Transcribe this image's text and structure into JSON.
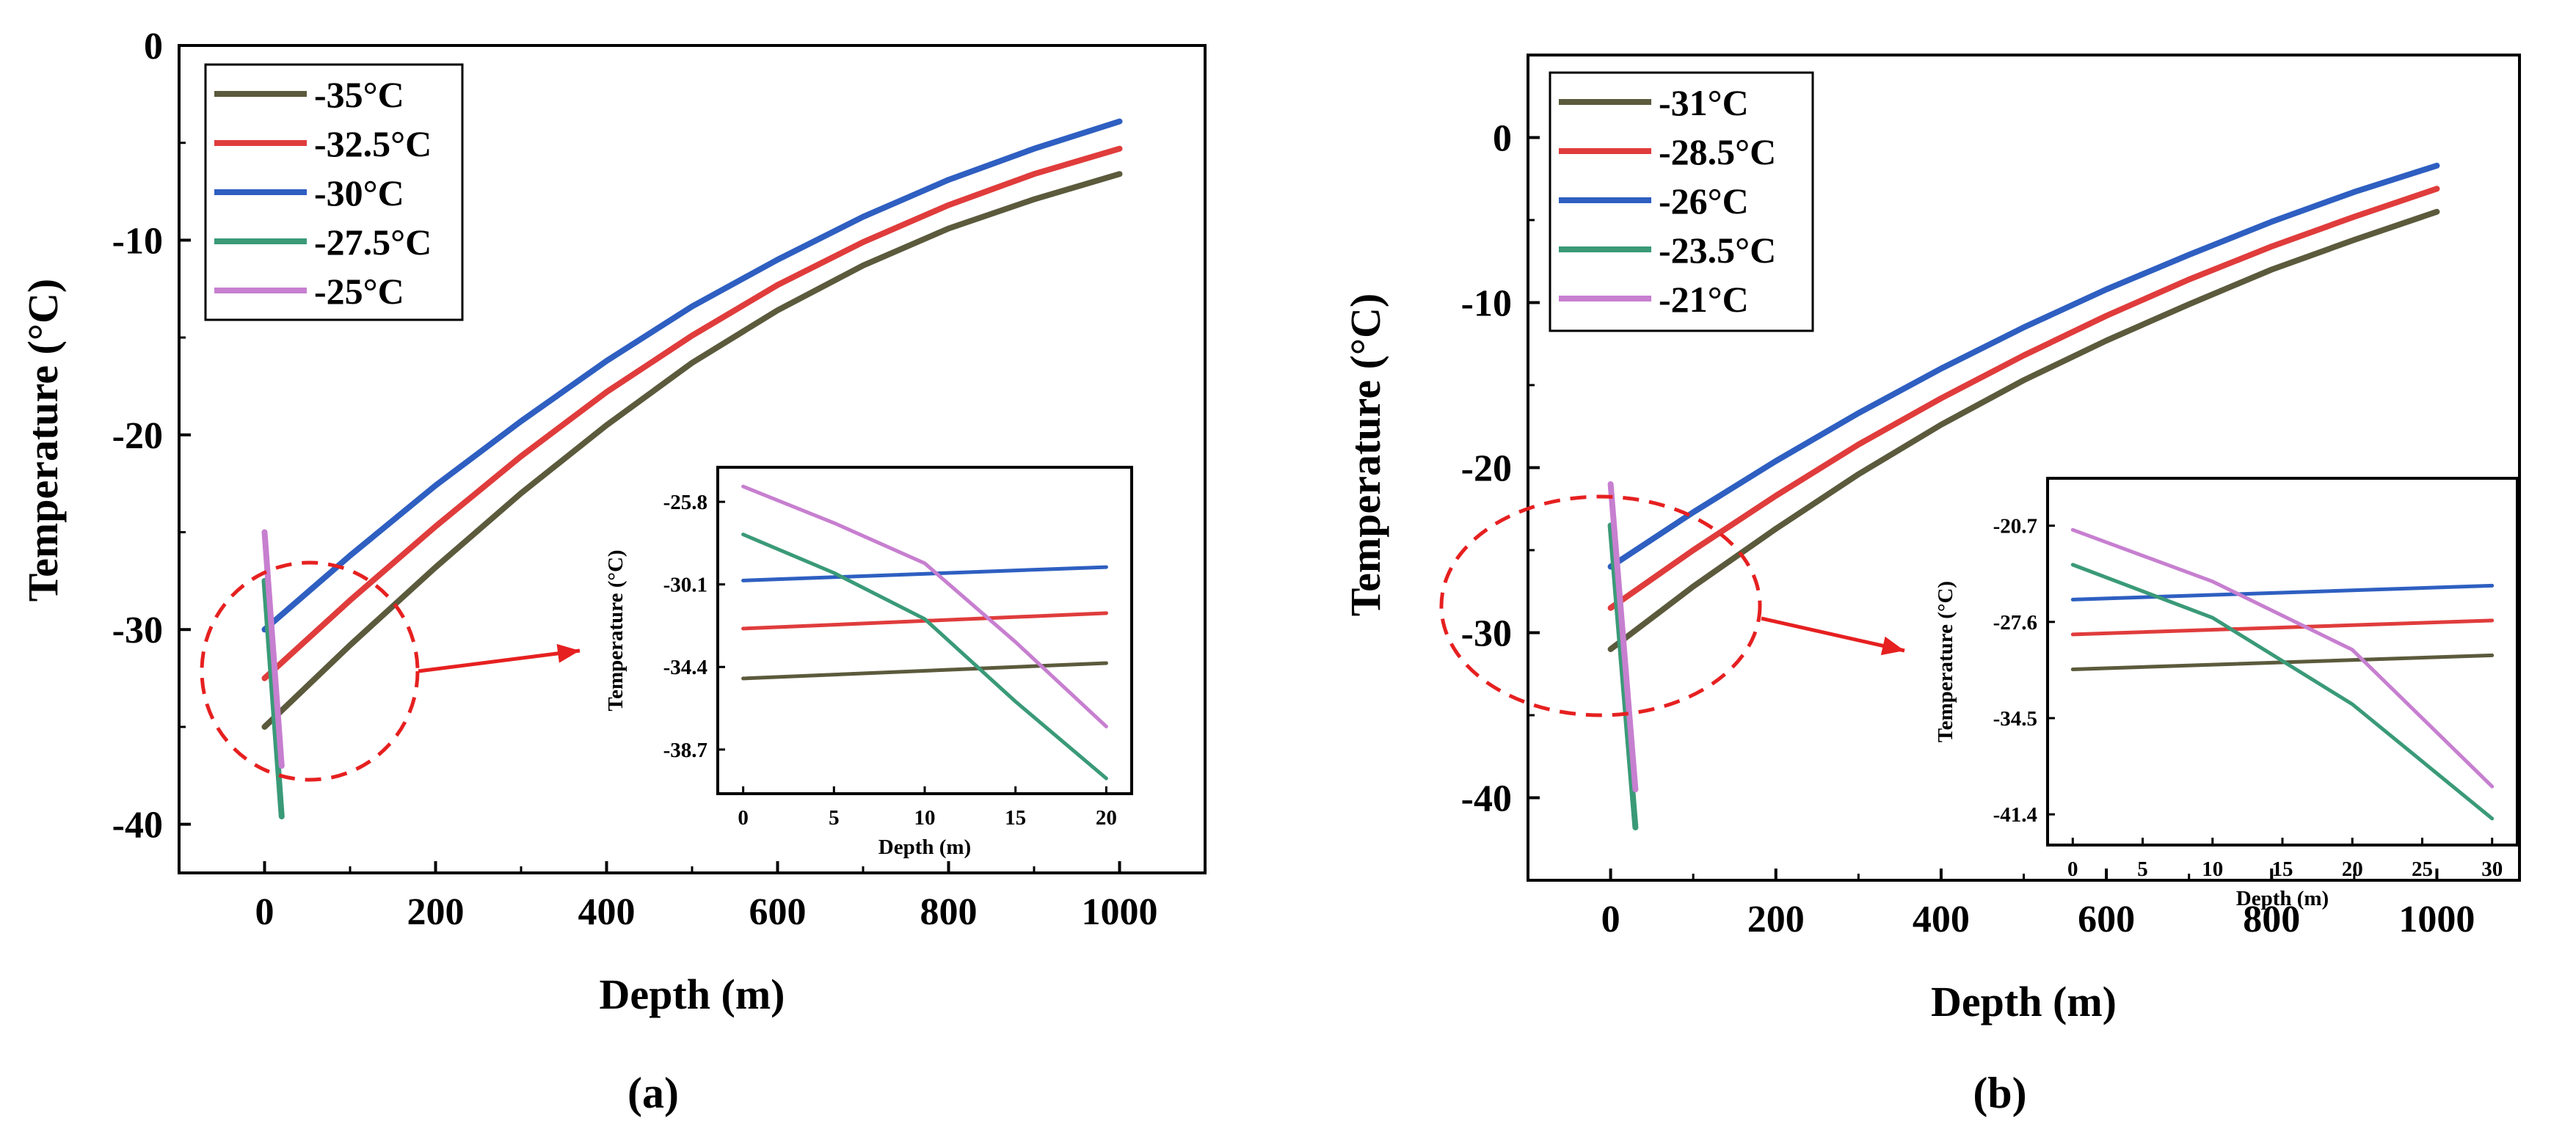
{
  "chart_data": [
    {
      "type": "line",
      "panel_label": "(a)",
      "xlabel": "Depth (m)",
      "ylabel": "Temperature (°C)",
      "xlim": [
        -100,
        1100
      ],
      "ylim": [
        -42.5,
        0
      ],
      "xticks": [
        0,
        200,
        400,
        600,
        800,
        1000
      ],
      "yticks": [
        0,
        -10,
        -20,
        -30,
        -40
      ],
      "legend_position": "top-left",
      "series": [
        {
          "name": "-35°C",
          "color": "#5b5a3c",
          "x": [
            0,
            100,
            200,
            300,
            400,
            500,
            600,
            700,
            800,
            900,
            1000
          ],
          "y": [
            -35.0,
            -30.8,
            -26.8,
            -23.0,
            -19.5,
            -16.3,
            -13.6,
            -11.3,
            -9.4,
            -7.9,
            -6.6
          ]
        },
        {
          "name": "-32.5°C",
          "color": "#e03c3c",
          "x": [
            0,
            100,
            200,
            300,
            400,
            500,
            600,
            700,
            800,
            900,
            1000
          ],
          "y": [
            -32.5,
            -28.5,
            -24.7,
            -21.1,
            -17.8,
            -14.9,
            -12.3,
            -10.1,
            -8.2,
            -6.6,
            -5.3
          ]
        },
        {
          "name": "-30°C",
          "color": "#2e5fc1",
          "x": [
            0,
            100,
            200,
            300,
            400,
            500,
            600,
            700,
            800,
            900,
            1000
          ],
          "y": [
            -30.0,
            -26.2,
            -22.6,
            -19.3,
            -16.2,
            -13.4,
            -11.0,
            -8.8,
            -6.9,
            -5.3,
            -3.9
          ]
        },
        {
          "name": "-27.5°C",
          "color": "#3a9a78",
          "x": [
            0,
            20
          ],
          "y": [
            -27.5,
            -39.6
          ]
        },
        {
          "name": "-25°C",
          "color": "#c77fd0",
          "x": [
            0,
            20
          ],
          "y": [
            -25.0,
            -37.0
          ]
        }
      ],
      "inset": {
        "xlabel": "Depth (m)",
        "ylabel": "Temperature (°C)",
        "xlim": [
          -1.4,
          21.4
        ],
        "ylim": [
          -41.0,
          -24.0
        ],
        "xticks": [
          0,
          5,
          10,
          15,
          20
        ],
        "yticks": [
          -25.8,
          -30.1,
          -34.4,
          -38.7
        ],
        "series": [
          {
            "name": "-35°C",
            "color": "#5b5a3c",
            "x": [
              0,
              20
            ],
            "y": [
              -35.0,
              -34.2
            ]
          },
          {
            "name": "-32.5°C",
            "color": "#e03c3c",
            "x": [
              0,
              20
            ],
            "y": [
              -32.4,
              -31.6
            ]
          },
          {
            "name": "-30°C",
            "color": "#2e5fc1",
            "x": [
              0,
              20
            ],
            "y": [
              -29.9,
              -29.2
            ]
          },
          {
            "name": "-27.5°C",
            "color": "#3a9a78",
            "x": [
              0,
              5,
              10,
              15,
              20
            ],
            "y": [
              -27.5,
              -29.5,
              -31.9,
              -36.2,
              -40.2
            ]
          },
          {
            "name": "-25°C",
            "color": "#c77fd0",
            "x": [
              0,
              5,
              10,
              15,
              20
            ],
            "y": [
              -25.0,
              -26.9,
              -29.0,
              -33.1,
              -37.5
            ]
          }
        ]
      }
    },
    {
      "type": "line",
      "panel_label": "(b)",
      "xlabel": "Depth (m)",
      "ylabel": "Temperature (°C)",
      "xlim": [
        -100,
        1100
      ],
      "ylim": [
        -45,
        5
      ],
      "xticks": [
        0,
        200,
        400,
        600,
        800,
        1000
      ],
      "yticks": [
        0,
        -10,
        -20,
        -30,
        -40
      ],
      "legend_position": "top-left",
      "series": [
        {
          "name": "-31°C",
          "color": "#5b5a3c",
          "x": [
            0,
            100,
            200,
            300,
            400,
            500,
            600,
            700,
            800,
            900,
            1000
          ],
          "y": [
            -31.0,
            -27.2,
            -23.7,
            -20.4,
            -17.4,
            -14.7,
            -12.3,
            -10.1,
            -8.0,
            -6.2,
            -4.5
          ]
        },
        {
          "name": "-28.5°C",
          "color": "#e03c3c",
          "x": [
            0,
            100,
            200,
            300,
            400,
            500,
            600,
            700,
            800,
            900,
            1000
          ],
          "y": [
            -28.5,
            -25.0,
            -21.7,
            -18.6,
            -15.8,
            -13.2,
            -10.8,
            -8.6,
            -6.6,
            -4.8,
            -3.1
          ]
        },
        {
          "name": "-26°C",
          "color": "#2e5fc1",
          "x": [
            0,
            100,
            200,
            300,
            400,
            500,
            600,
            700,
            800,
            900,
            1000
          ],
          "y": [
            -26.0,
            -22.7,
            -19.6,
            -16.7,
            -14.0,
            -11.5,
            -9.2,
            -7.1,
            -5.1,
            -3.3,
            -1.7
          ]
        },
        {
          "name": "-23.5°C",
          "color": "#3a9a78",
          "x": [
            0,
            30
          ],
          "y": [
            -23.5,
            -41.8
          ]
        },
        {
          "name": "-21°C",
          "color": "#c77fd0",
          "x": [
            0,
            30
          ],
          "y": [
            -21.0,
            -39.5
          ]
        }
      ],
      "inset": {
        "xlabel": "Depth (m)",
        "ylabel": "Temperature (°C)",
        "xlim": [
          -1.8,
          31.8
        ],
        "ylim": [
          -43.6,
          -17.3
        ],
        "xticks": [
          0,
          5,
          10,
          15,
          20,
          25,
          30
        ],
        "yticks": [
          -20.7,
          -27.6,
          -34.5,
          -41.4
        ],
        "series": [
          {
            "name": "-31°C",
            "color": "#5b5a3c",
            "x": [
              0,
              30
            ],
            "y": [
              -31.0,
              -30.0
            ]
          },
          {
            "name": "-28.5°C",
            "color": "#e03c3c",
            "x": [
              0,
              30
            ],
            "y": [
              -28.5,
              -27.5
            ]
          },
          {
            "name": "-26°C",
            "color": "#2e5fc1",
            "x": [
              0,
              30
            ],
            "y": [
              -26.0,
              -25.0
            ]
          },
          {
            "name": "-23.5°C",
            "color": "#3a9a78",
            "x": [
              0,
              10,
              20,
              30
            ],
            "y": [
              -23.5,
              -27.3,
              -33.5,
              -41.7
            ]
          },
          {
            "name": "-21°C",
            "color": "#c77fd0",
            "x": [
              0,
              10,
              20,
              30
            ],
            "y": [
              -21.0,
              -24.7,
              -29.6,
              -39.4
            ]
          }
        ]
      }
    }
  ]
}
